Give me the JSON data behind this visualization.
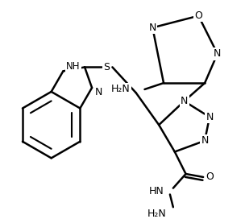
{
  "background_color": "#ffffff",
  "line_color": "#000000",
  "line_width": 1.8,
  "font_size": 9,
  "figsize": [
    3.04,
    2.72
  ],
  "dpi": 100,
  "xlim": [
    0,
    304
  ],
  "ylim": [
    0,
    272
  ]
}
